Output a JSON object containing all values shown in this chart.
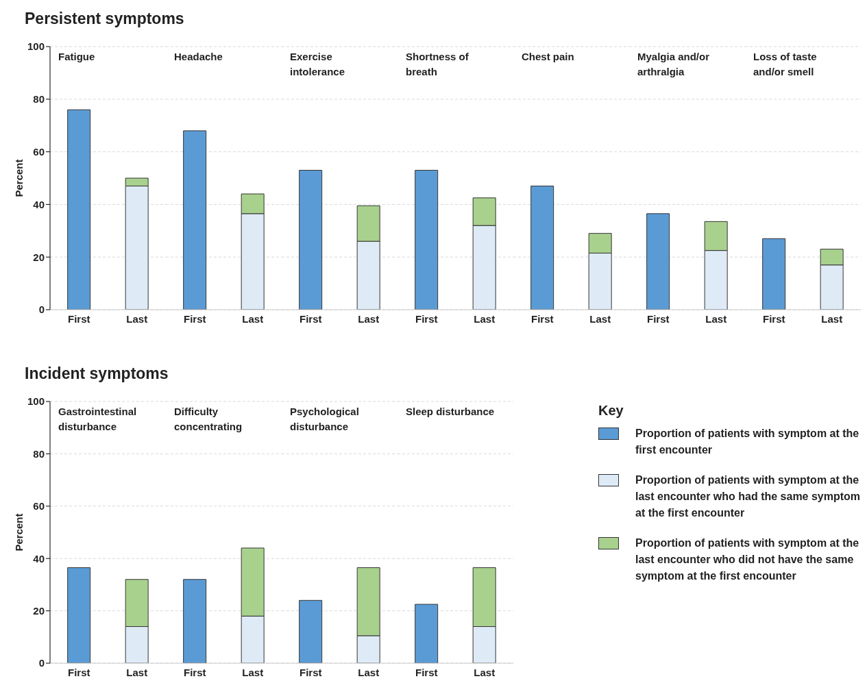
{
  "chart_data": [
    {
      "type": "bar",
      "title": "Fatigue",
      "annotations": [
        "Persistent symptoms"
      ],
      "ylabel": "Percent",
      "categories": [
        "First",
        "Last"
      ],
      "stacked": true,
      "ylim": [
        0,
        100
      ],
      "yticks": [
        0,
        20,
        40,
        60,
        80,
        100
      ],
      "grid": "y",
      "series": [
        {
          "color": "#5b9bd5",
          "values": [
            76,
            null
          ]
        },
        {
          "color": "#deebf7",
          "values": [
            null,
            47
          ]
        },
        {
          "color": "#a9d18e",
          "values": [
            null,
            3
          ]
        }
      ]
    },
    {
      "type": "bar",
      "title": "Headache",
      "categories": [
        "First",
        "Last"
      ],
      "stacked": true,
      "ylim": [
        0,
        100
      ],
      "yticks": [
        0,
        20,
        40,
        60,
        80,
        100
      ],
      "grid": "y",
      "tick_labels": "x",
      "series": [
        {
          "color": "#5b9bd5",
          "values": [
            68,
            null
          ]
        },
        {
          "color": "#deebf7",
          "values": [
            null,
            36.5
          ]
        },
        {
          "color": "#a9d18e",
          "values": [
            null,
            7.5
          ]
        }
      ]
    },
    {
      "type": "bar",
      "title": "Exercise intolerance",
      "categories": [
        "First",
        "Last"
      ],
      "stacked": true,
      "ylim": [
        0,
        100
      ],
      "yticks": [
        0,
        20,
        40,
        60,
        80,
        100
      ],
      "grid": "y",
      "tick_labels": "x",
      "series": [
        {
          "color": "#5b9bd5",
          "values": [
            53,
            null
          ]
        },
        {
          "color": "#deebf7",
          "values": [
            null,
            26
          ]
        },
        {
          "color": "#a9d18e",
          "values": [
            null,
            13.5
          ]
        }
      ]
    },
    {
      "type": "bar",
      "title": "Shortness of breath",
      "categories": [
        "First",
        "Last"
      ],
      "stacked": true,
      "ylim": [
        0,
        100
      ],
      "yticks": [
        0,
        20,
        40,
        60,
        80,
        100
      ],
      "grid": "y",
      "tick_labels": "x",
      "series": [
        {
          "color": "#5b9bd5",
          "values": [
            53,
            null
          ]
        },
        {
          "color": "#deebf7",
          "values": [
            null,
            32
          ]
        },
        {
          "color": "#a9d18e",
          "values": [
            null,
            10.5
          ]
        }
      ]
    },
    {
      "type": "bar",
      "title": "Chest pain",
      "categories": [
        "First",
        "Last"
      ],
      "stacked": true,
      "ylim": [
        0,
        100
      ],
      "yticks": [
        0,
        20,
        40,
        60,
        80,
        100
      ],
      "grid": "y",
      "tick_labels": "x",
      "series": [
        {
          "color": "#5b9bd5",
          "values": [
            47,
            null
          ]
        },
        {
          "color": "#deebf7",
          "values": [
            null,
            21.5
          ]
        },
        {
          "color": "#a9d18e",
          "values": [
            null,
            7.5
          ]
        }
      ]
    },
    {
      "type": "bar",
      "title": "Myalgia and/or arthralgia",
      "categories": [
        "First",
        "Last"
      ],
      "stacked": true,
      "ylim": [
        0,
        100
      ],
      "yticks": [
        0,
        20,
        40,
        60,
        80,
        100
      ],
      "grid": "y",
      "tick_labels": "x",
      "series": [
        {
          "color": "#5b9bd5",
          "values": [
            36.5,
            null
          ]
        },
        {
          "color": "#deebf7",
          "values": [
            null,
            22.5
          ]
        },
        {
          "color": "#a9d18e",
          "values": [
            null,
            11
          ]
        }
      ]
    },
    {
      "type": "bar",
      "title": "Loss of taste and/or smell",
      "categories": [
        "First",
        "Last"
      ],
      "stacked": true,
      "ylim": [
        0,
        100
      ],
      "yticks": [
        0,
        20,
        40,
        60,
        80,
        100
      ],
      "grid": "y",
      "tick_labels": "x",
      "series": [
        {
          "color": "#5b9bd5",
          "values": [
            27,
            null
          ]
        },
        {
          "color": "#deebf7",
          "values": [
            null,
            17
          ]
        },
        {
          "color": "#a9d18e",
          "values": [
            null,
            6
          ]
        }
      ]
    },
    {
      "type": "bar",
      "title": "Gastrointestinal disturbance",
      "annotations": [
        "Incident symptoms"
      ],
      "ylabel": "Percent",
      "categories": [
        "First",
        "Last"
      ],
      "stacked": true,
      "ylim": [
        0,
        100
      ],
      "yticks": [
        0,
        20,
        40,
        60,
        80,
        100
      ],
      "grid": "y",
      "series": [
        {
          "color": "#5b9bd5",
          "values": [
            36.5,
            null
          ]
        },
        {
          "color": "#deebf7",
          "values": [
            null,
            14
          ]
        },
        {
          "color": "#a9d18e",
          "values": [
            null,
            18
          ]
        }
      ]
    },
    {
      "type": "bar",
      "title": "Difficulty concentrating",
      "categories": [
        "First",
        "Last"
      ],
      "stacked": true,
      "ylim": [
        0,
        100
      ],
      "yticks": [
        0,
        20,
        40,
        60,
        80,
        100
      ],
      "grid": "y",
      "tick_labels": "x",
      "series": [
        {
          "color": "#5b9bd5",
          "values": [
            32,
            null
          ]
        },
        {
          "color": "#deebf7",
          "values": [
            null,
            18
          ]
        },
        {
          "color": "#a9d18e",
          "values": [
            null,
            26
          ]
        }
      ]
    },
    {
      "type": "bar",
      "title": "Psychological disturbance",
      "categories": [
        "First",
        "Last"
      ],
      "stacked": true,
      "ylim": [
        0,
        100
      ],
      "yticks": [
        0,
        20,
        40,
        60,
        80,
        100
      ],
      "grid": "y",
      "tick_labels": "x",
      "series": [
        {
          "color": "#5b9bd5",
          "values": [
            24,
            null
          ]
        },
        {
          "color": "#deebf7",
          "values": [
            null,
            10.5
          ]
        },
        {
          "color": "#a9d18e",
          "values": [
            null,
            26
          ]
        }
      ]
    },
    {
      "type": "bar",
      "title": "Sleep disturbance",
      "categories": [
        "First",
        "Last"
      ],
      "stacked": true,
      "ylim": [
        0,
        100
      ],
      "yticks": [
        0,
        20,
        40,
        60,
        80,
        100
      ],
      "grid": "y",
      "tick_labels": "x",
      "legend": "right",
      "legend_title": "Key",
      "series": [
        {
          "name": "Proportion of patients with symptom at the first encounter",
          "color": "#5b9bd5",
          "values": [
            22.5,
            null
          ]
        },
        {
          "name": "Proportion of patients with symptom at the last encounter who had the same symptom at the first encounter",
          "color": "#deebf7",
          "values": [
            null,
            14
          ]
        },
        {
          "name": "Proportion of patients with symptom at the last encounter who did not have the same symptom at the first encounter",
          "color": "#a9d18e",
          "values": [
            null,
            22.5
          ]
        }
      ]
    }
  ]
}
